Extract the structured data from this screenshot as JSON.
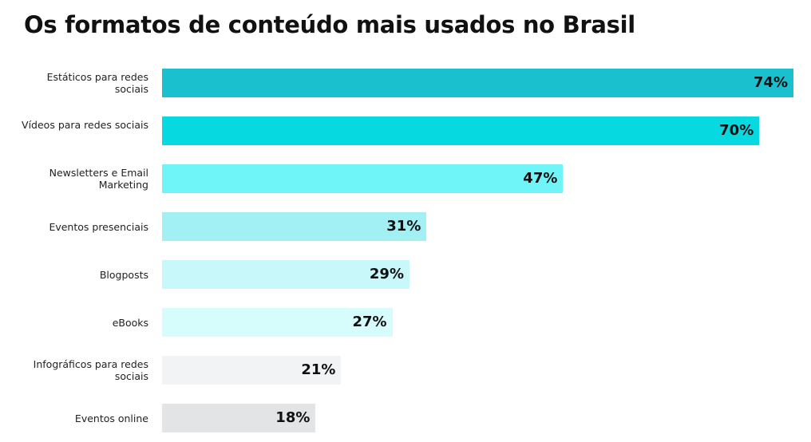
{
  "chart_data": {
    "type": "bar",
    "orientation": "horizontal",
    "title": "Os formatos de conteúdo mais usados no Brasil",
    "categories": [
      "Estáticos para redes sociais",
      "Vídeos para redes sociais",
      "Newsletters e Email Marketing",
      "Eventos presenciais",
      "Blogposts",
      "eBooks",
      "Infográficos para redes sociais",
      "Eventos online"
    ],
    "values": [
      74,
      70,
      47,
      31,
      29,
      27,
      21,
      18
    ],
    "value_labels": [
      "74%",
      "70%",
      "47%",
      "31%",
      "29%",
      "27%",
      "21%",
      "18%"
    ],
    "colors": [
      "#1bc0cf",
      "#06d9e0",
      "#6ff5f8",
      "#a3f0f4",
      "#c8f8fa",
      "#d6fcfc",
      "#f1f3f4",
      "#e2e4e6"
    ],
    "grid": false,
    "legend": "none"
  }
}
